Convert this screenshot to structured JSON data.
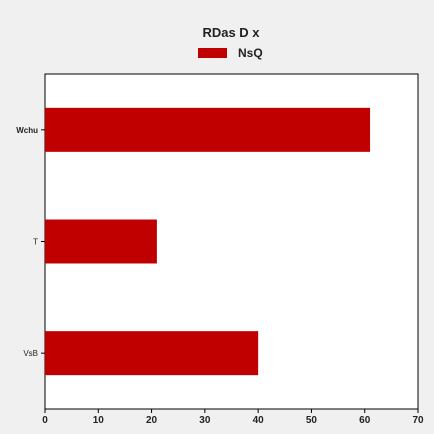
{
  "chart_data": {
    "type": "bar",
    "orientation": "horizontal",
    "title": "RDas D x",
    "categories": [
      "Wchu",
      "T",
      "VsB"
    ],
    "series": [
      {
        "name": "NsQ",
        "values": [
          61,
          21,
          40
        ],
        "color": "#c00000"
      }
    ],
    "xlim": [
      0,
      70
    ],
    "xticks": [
      "0",
      "10",
      "20",
      "30",
      "40",
      "50",
      "60",
      "70"
    ],
    "grid": false,
    "legend_position": "top"
  }
}
